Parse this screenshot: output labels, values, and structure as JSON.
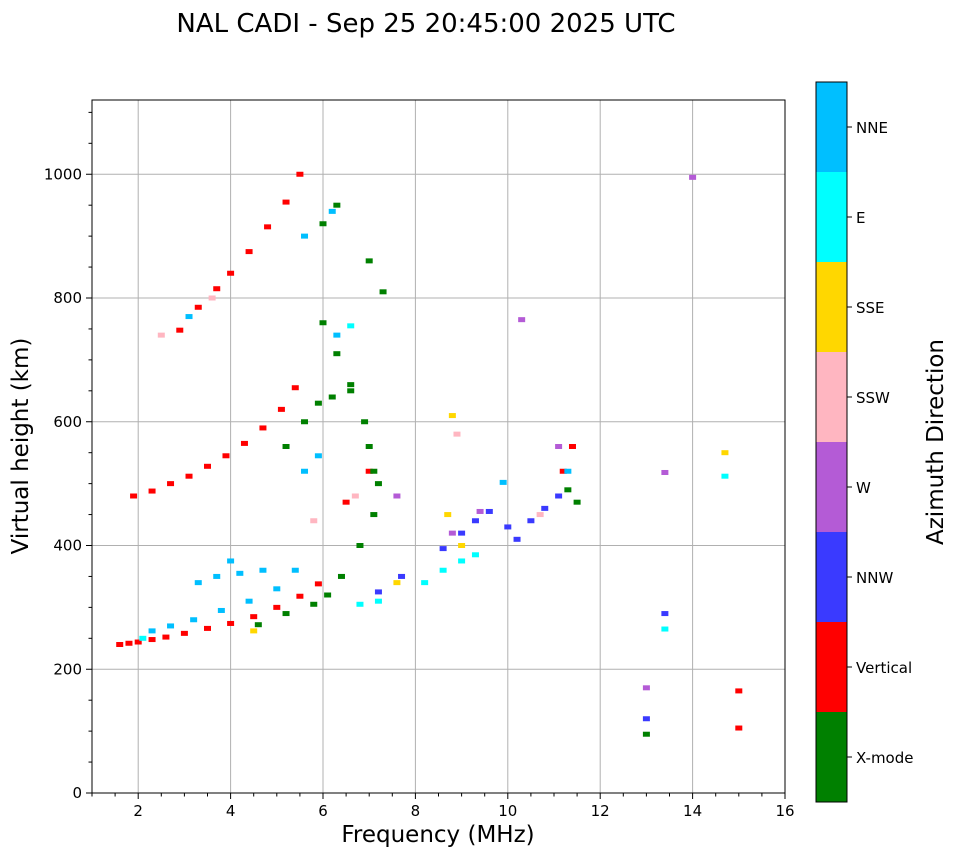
{
  "chart_data": {
    "type": "scatter",
    "title": "NAL CADI - Sep 25 20:45:00 2025 UTC",
    "xlabel": "Frequency (MHz)",
    "ylabel": "Virtual height (km)",
    "xlim": [
      1,
      16
    ],
    "ylim": [
      0,
      1120
    ],
    "xticks": [
      2,
      4,
      6,
      8,
      10,
      12,
      14,
      16
    ],
    "yticks": [
      0,
      200,
      400,
      600,
      800,
      1000
    ],
    "grid": true,
    "colorbar": {
      "label": "Azimuth Direction",
      "categories": [
        {
          "name": "X-mode",
          "color": "#008000"
        },
        {
          "name": "Vertical",
          "color": "#ff0000"
        },
        {
          "name": "NNW",
          "color": "#3a3aff"
        },
        {
          "name": "W",
          "color": "#b45bd6"
        },
        {
          "name": "SSW",
          "color": "#ffb6c1"
        },
        {
          "name": "SSE",
          "color": "#ffd700"
        },
        {
          "name": "E",
          "color": "#00ffff"
        },
        {
          "name": "NNE",
          "color": "#00bfff"
        }
      ]
    },
    "series": [
      {
        "name": "Vertical",
        "points": [
          [
            1.6,
            240
          ],
          [
            1.8,
            242
          ],
          [
            2.0,
            244
          ],
          [
            2.3,
            248
          ],
          [
            2.6,
            252
          ],
          [
            3.0,
            258
          ],
          [
            3.5,
            266
          ],
          [
            4.0,
            274
          ],
          [
            4.5,
            285
          ],
          [
            5.0,
            300
          ],
          [
            5.5,
            318
          ],
          [
            5.9,
            338
          ],
          [
            1.9,
            480
          ],
          [
            2.3,
            488
          ],
          [
            2.7,
            500
          ],
          [
            3.1,
            512
          ],
          [
            3.5,
            528
          ],
          [
            3.9,
            545
          ],
          [
            4.3,
            565
          ],
          [
            4.7,
            590
          ],
          [
            5.1,
            620
          ],
          [
            5.4,
            655
          ],
          [
            2.9,
            748
          ],
          [
            3.3,
            785
          ],
          [
            3.7,
            815
          ],
          [
            4.0,
            840
          ],
          [
            4.4,
            875
          ],
          [
            4.8,
            915
          ],
          [
            5.2,
            955
          ],
          [
            5.5,
            1000
          ],
          [
            6.5,
            470
          ],
          [
            7.0,
            520
          ],
          [
            11.2,
            520
          ],
          [
            11.4,
            560
          ],
          [
            15.0,
            105
          ],
          [
            15.0,
            165
          ]
        ]
      },
      {
        "name": "X-mode",
        "points": [
          [
            4.6,
            272
          ],
          [
            5.2,
            290
          ],
          [
            5.8,
            305
          ],
          [
            6.1,
            320
          ],
          [
            6.4,
            350
          ],
          [
            6.8,
            400
          ],
          [
            7.1,
            450
          ],
          [
            7.1,
            520
          ],
          [
            6.9,
            600
          ],
          [
            6.6,
            660
          ],
          [
            6.3,
            710
          ],
          [
            6.0,
            760
          ],
          [
            5.2,
            560
          ],
          [
            5.6,
            600
          ],
          [
            5.9,
            630
          ],
          [
            6.2,
            640
          ],
          [
            6.6,
            650
          ],
          [
            7.0,
            560
          ],
          [
            7.2,
            500
          ],
          [
            6.0,
            920
          ],
          [
            6.3,
            950
          ],
          [
            7.0,
            860
          ],
          [
            7.3,
            810
          ],
          [
            11.3,
            490
          ],
          [
            11.5,
            470
          ],
          [
            13.0,
            95
          ]
        ]
      },
      {
        "name": "NNW",
        "points": [
          [
            8.6,
            395
          ],
          [
            9.0,
            420
          ],
          [
            9.3,
            440
          ],
          [
            9.6,
            455
          ],
          [
            10.0,
            430
          ],
          [
            10.2,
            410
          ],
          [
            10.5,
            440
          ],
          [
            10.8,
            460
          ],
          [
            11.1,
            480
          ],
          [
            7.2,
            325
          ],
          [
            7.7,
            350
          ],
          [
            13.4,
            290
          ],
          [
            13.0,
            120
          ]
        ]
      },
      {
        "name": "W",
        "points": [
          [
            8.8,
            420
          ],
          [
            9.4,
            455
          ],
          [
            10.3,
            765
          ],
          [
            11.1,
            560
          ],
          [
            13.4,
            518
          ],
          [
            14.0,
            995
          ],
          [
            13.0,
            170
          ],
          [
            7.6,
            480
          ]
        ]
      },
      {
        "name": "SSW",
        "points": [
          [
            2.5,
            740
          ],
          [
            3.6,
            800
          ],
          [
            6.7,
            480
          ],
          [
            8.9,
            580
          ],
          [
            10.7,
            450
          ],
          [
            5.8,
            440
          ]
        ]
      },
      {
        "name": "SSE",
        "points": [
          [
            8.8,
            610
          ],
          [
            8.7,
            450
          ],
          [
            9.0,
            400
          ],
          [
            7.6,
            340
          ],
          [
            14.7,
            550
          ],
          [
            4.5,
            262
          ]
        ]
      },
      {
        "name": "E",
        "points": [
          [
            8.2,
            340
          ],
          [
            8.6,
            360
          ],
          [
            9.0,
            375
          ],
          [
            9.3,
            385
          ],
          [
            7.2,
            310
          ],
          [
            6.8,
            305
          ],
          [
            2.1,
            250
          ],
          [
            14.7,
            512
          ],
          [
            13.4,
            265
          ],
          [
            6.6,
            755
          ]
        ]
      },
      {
        "name": "NNE",
        "points": [
          [
            2.3,
            262
          ],
          [
            2.7,
            270
          ],
          [
            3.2,
            280
          ],
          [
            3.8,
            295
          ],
          [
            4.4,
            310
          ],
          [
            5.0,
            330
          ],
          [
            5.4,
            360
          ],
          [
            3.3,
            340
          ],
          [
            3.7,
            350
          ],
          [
            4.2,
            355
          ],
          [
            4.7,
            360
          ],
          [
            4.0,
            375
          ],
          [
            5.6,
            520
          ],
          [
            5.9,
            545
          ],
          [
            3.1,
            770
          ],
          [
            5.6,
            900
          ],
          [
            6.3,
            740
          ],
          [
            6.2,
            940
          ],
          [
            9.9,
            502
          ],
          [
            11.3,
            520
          ]
        ]
      }
    ]
  }
}
